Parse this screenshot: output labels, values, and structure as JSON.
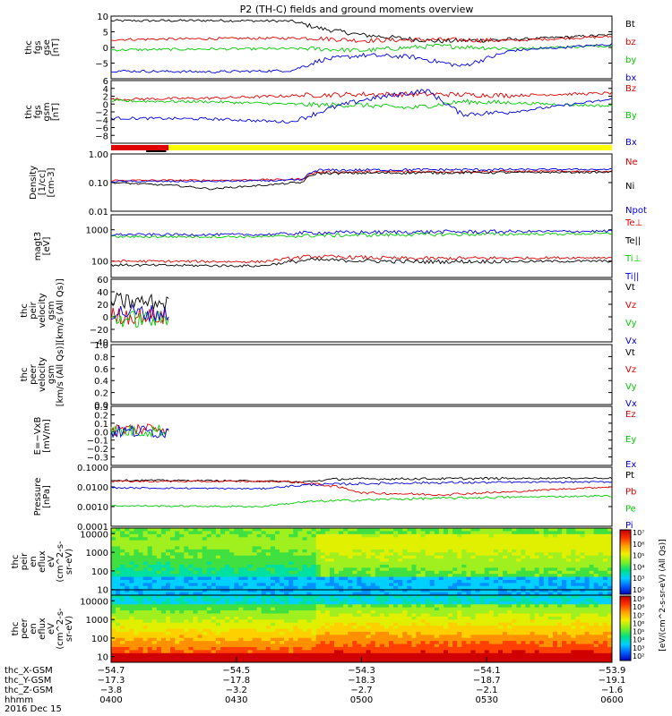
{
  "title": "P2 (TH-C) fields and ground moments overview",
  "date": "2016 Dec 15",
  "colors": {
    "black": "#000000",
    "red": "#e00000",
    "green": "#00cc00",
    "blue": "#0000e0",
    "yellow": "#ffff00",
    "gray": "#888888"
  },
  "chart_data": [
    {
      "id": "fgs_dsl",
      "type": "line",
      "ylabel_lines": [
        "thc",
        "fgs",
        "gse",
        "[nT]"
      ],
      "ylim": [
        -10,
        10
      ],
      "ticks": [
        "10",
        "5",
        "0",
        "−5"
      ],
      "tick_values": [
        10,
        5,
        0,
        -5
      ],
      "series": [
        {
          "name": "Bt",
          "color": "#000000",
          "keypoints": [
            [
              0,
              8.5
            ],
            [
              0.2,
              8.6
            ],
            [
              0.36,
              8.4
            ],
            [
              0.42,
              6
            ],
            [
              0.5,
              4
            ],
            [
              0.65,
              2
            ],
            [
              0.8,
              2.5
            ],
            [
              1,
              4
            ]
          ]
        },
        {
          "name": "bz",
          "color": "#e00000",
          "keypoints": [
            [
              0,
              2.5
            ],
            [
              0.2,
              2.8
            ],
            [
              0.4,
              3
            ],
            [
              0.5,
              2.2
            ],
            [
              0.65,
              2.5
            ],
            [
              0.8,
              2.2
            ],
            [
              1,
              3.5
            ]
          ]
        },
        {
          "name": "by",
          "color": "#00cc00",
          "keypoints": [
            [
              0,
              -0.8
            ],
            [
              0.2,
              -0.5
            ],
            [
              0.4,
              -0.4
            ],
            [
              0.5,
              -1
            ],
            [
              0.65,
              0.5
            ],
            [
              0.8,
              -0.4
            ],
            [
              1,
              0.6
            ]
          ]
        },
        {
          "name": "bx",
          "color": "#0000e0",
          "keypoints": [
            [
              0,
              -7.5
            ],
            [
              0.2,
              -7.8
            ],
            [
              0.36,
              -7.4
            ],
            [
              0.42,
              -4
            ],
            [
              0.5,
              -2.5
            ],
            [
              0.6,
              -3
            ],
            [
              0.7,
              -6
            ],
            [
              0.8,
              -1
            ],
            [
              1,
              1
            ]
          ]
        }
      ]
    },
    {
      "id": "fgs_gsm",
      "type": "line",
      "ylabel_lines": [
        "thc",
        "fgs",
        "gsm",
        "[nT]"
      ],
      "ylim": [
        -10,
        6
      ],
      "ticks": [
        "6",
        "4",
        "2",
        "0",
        "−2",
        "−4",
        "−6",
        "−8"
      ],
      "tick_values": [
        6,
        4,
        2,
        0,
        -2,
        -4,
        -6,
        -8
      ],
      "series": [
        {
          "name": "Bz",
          "color": "#e00000",
          "keypoints": [
            [
              0,
              1.2
            ],
            [
              0.2,
              1.5
            ],
            [
              0.38,
              2.2
            ],
            [
              0.5,
              2.5
            ],
            [
              0.65,
              2.5
            ],
            [
              0.8,
              2.2
            ],
            [
              1,
              2.8
            ]
          ]
        },
        {
          "name": "By",
          "color": "#00cc00",
          "keypoints": [
            [
              0,
              0.8
            ],
            [
              0.2,
              0.6
            ],
            [
              0.4,
              -0.2
            ],
            [
              0.5,
              -0.3
            ],
            [
              0.6,
              -1
            ],
            [
              0.7,
              0.6
            ],
            [
              0.8,
              0.3
            ],
            [
              1,
              -0.5
            ]
          ]
        },
        {
          "name": "Bx",
          "color": "#0000e0",
          "keypoints": [
            [
              0,
              -3.6
            ],
            [
              0.2,
              -3.8
            ],
            [
              0.36,
              -4.6
            ],
            [
              0.44,
              -1
            ],
            [
              0.5,
              1
            ],
            [
              0.63,
              3.5
            ],
            [
              0.7,
              -2.6
            ],
            [
              0.8,
              -2
            ],
            [
              1,
              1.2
            ]
          ]
        }
      ]
    },
    {
      "id": "mode_bar",
      "type": "bar",
      "segments": [
        {
          "from": 0,
          "to": 0.115,
          "color": "#e00000"
        },
        {
          "from": 0.115,
          "to": 1,
          "color": "#ffff00"
        }
      ]
    },
    {
      "id": "density",
      "type": "line",
      "log": true,
      "ylabel_lines": [
        "Density",
        "[1/cc]",
        "[cm-3]"
      ],
      "ylim": [
        0.01,
        1.0
      ],
      "ticks": [
        "1.00",
        "0.10",
        "0.01"
      ],
      "tick_values": [
        1.0,
        0.1,
        0.01
      ],
      "series": [
        {
          "name": "Ne",
          "color": "#e00000",
          "keypoints": [
            [
              0,
              0.12
            ],
            [
              0.2,
              0.12
            ],
            [
              0.38,
              0.13
            ],
            [
              0.41,
              0.23
            ],
            [
              0.6,
              0.24
            ],
            [
              1,
              0.25
            ]
          ]
        },
        {
          "name": "Ni",
          "color": "#000000",
          "keypoints": [
            [
              0,
              0.1
            ],
            [
              0.12,
              0.08
            ],
            [
              0.2,
              0.06
            ],
            [
              0.3,
              0.08
            ],
            [
              0.38,
              0.1
            ],
            [
              0.41,
              0.21
            ],
            [
              0.6,
              0.22
            ],
            [
              1,
              0.23
            ]
          ]
        },
        {
          "name": "Npot",
          "color": "#0000e0",
          "keypoints": [
            [
              0,
              0.11
            ],
            [
              0.2,
              0.11
            ],
            [
              0.38,
              0.12
            ],
            [
              0.41,
              0.27
            ],
            [
              0.6,
              0.28
            ],
            [
              1,
              0.29
            ]
          ]
        }
      ]
    },
    {
      "id": "temperature",
      "type": "line",
      "log": true,
      "ylabel_lines": [
        "magt3",
        "[eV]"
      ],
      "ylim": [
        30,
        3000
      ],
      "ticks": [
        "1000",
        "100"
      ],
      "tick_values": [
        1000,
        100
      ],
      "series": [
        {
          "name": "Te⊥",
          "color": "#e00000",
          "keypoints": [
            [
              0,
              100
            ],
            [
              0.3,
              95
            ],
            [
              0.4,
              140
            ],
            [
              0.6,
              120
            ],
            [
              1,
              130
            ]
          ]
        },
        {
          "name": "Te||",
          "color": "#000000",
          "keypoints": [
            [
              0,
              75
            ],
            [
              0.3,
              70
            ],
            [
              0.4,
              110
            ],
            [
              0.6,
              95
            ],
            [
              1,
              100
            ]
          ]
        },
        {
          "name": "Ti⊥",
          "color": "#00cc00",
          "keypoints": [
            [
              0,
              600
            ],
            [
              0.3,
              600
            ],
            [
              0.4,
              650
            ],
            [
              0.6,
              700
            ],
            [
              1,
              750
            ]
          ]
        },
        {
          "name": "Ti||",
          "color": "#0000e0",
          "keypoints": [
            [
              0,
              700
            ],
            [
              0.3,
              700
            ],
            [
              0.4,
              800
            ],
            [
              0.6,
              850
            ],
            [
              1,
              900
            ]
          ]
        }
      ]
    },
    {
      "id": "peir_velocity",
      "type": "line",
      "ylabel_lines": [
        "thc",
        "peir",
        "velocity",
        "gsm",
        "[km/s (All Qs)]"
      ],
      "ylim": [
        -40,
        60
      ],
      "ticks": [
        "60",
        "40",
        "20",
        "0",
        "−20",
        "−40"
      ],
      "tick_values": [
        60,
        40,
        20,
        0,
        -20,
        -40
      ],
      "xrange": [
        0,
        0.115
      ],
      "series": [
        {
          "name": "Vt",
          "color": "#000000",
          "keypoints": [
            [
              0,
              25
            ],
            [
              0.115,
              22
            ]
          ]
        },
        {
          "name": "Vz",
          "color": "#e00000",
          "keypoints": [
            [
              0,
              2
            ],
            [
              0.115,
              0
            ]
          ]
        },
        {
          "name": "Vy",
          "color": "#00cc00",
          "keypoints": [
            [
              0,
              -3
            ],
            [
              0.115,
              -5
            ]
          ]
        },
        {
          "name": "Vx",
          "color": "#0000e0",
          "keypoints": [
            [
              0,
              8
            ],
            [
              0.115,
              5
            ]
          ]
        }
      ]
    },
    {
      "id": "peer_velocity",
      "type": "line",
      "ylabel_lines": [
        "thc",
        "peer",
        "velocity",
        "gsm",
        "[km/s (All Qs)]"
      ],
      "ylim": [
        0,
        1.0
      ],
      "ticks": [
        "1.0",
        "0.8",
        "0.6",
        "0.4",
        "0.2",
        "0.0"
      ],
      "tick_values": [
        1.0,
        0.8,
        0.6,
        0.4,
        0.2,
        0.0
      ],
      "series": [
        {
          "name": "Vt",
          "color": "#000000",
          "keypoints": []
        },
        {
          "name": "Vz",
          "color": "#e00000",
          "keypoints": []
        },
        {
          "name": "Vy",
          "color": "#00cc00",
          "keypoints": []
        },
        {
          "name": "Vx",
          "color": "#0000e0",
          "keypoints": []
        }
      ]
    },
    {
      "id": "efield",
      "type": "line",
      "ylabel_lines": [
        "E=−VxB",
        "[mV/m]"
      ],
      "ylim": [
        -0.4,
        0.3
      ],
      "ticks": [
        "0.3",
        "0.2",
        "0.1",
        "0.0",
        "−0.1",
        "−0.2",
        "−0.3"
      ],
      "tick_values": [
        0.3,
        0.2,
        0.1,
        0.0,
        -0.1,
        -0.2,
        -0.3
      ],
      "xrange": [
        0,
        0.115
      ],
      "series": [
        {
          "name": "Ez",
          "color": "#e00000",
          "keypoints": [
            [
              0,
              0.02
            ],
            [
              0.115,
              0.05
            ]
          ]
        },
        {
          "name": "Ey",
          "color": "#00cc00",
          "keypoints": [
            [
              0,
              0.0
            ],
            [
              0.115,
              0.02
            ]
          ]
        },
        {
          "name": "Ex",
          "color": "#0000e0",
          "keypoints": [
            [
              0,
              0.0
            ],
            [
              0.115,
              0.0
            ]
          ]
        }
      ]
    },
    {
      "id": "pressure",
      "type": "line",
      "log": true,
      "ylabel_lines": [
        "Pressure",
        "[nPa]"
      ],
      "ylim": [
        0.0001,
        0.1
      ],
      "ticks": [
        "0.1000",
        "0.0100",
        "0.0010",
        "0.0001"
      ],
      "tick_values": [
        0.1,
        0.01,
        0.001,
        0.0001
      ],
      "series": [
        {
          "name": "Pt",
          "color": "#000000",
          "keypoints": [
            [
              0,
              0.022
            ],
            [
              0.3,
              0.02
            ],
            [
              0.38,
              0.017
            ],
            [
              0.45,
              0.025
            ],
            [
              1,
              0.028
            ]
          ]
        },
        {
          "name": "Pb",
          "color": "#e00000",
          "keypoints": [
            [
              0,
              0.019
            ],
            [
              0.35,
              0.019
            ],
            [
              0.42,
              0.013
            ],
            [
              0.5,
              0.005
            ],
            [
              0.65,
              0.004
            ],
            [
              0.8,
              0.0055
            ],
            [
              1,
              0.01
            ]
          ]
        },
        {
          "name": "Pe",
          "color": "#00cc00",
          "keypoints": [
            [
              0,
              0.0011
            ],
            [
              0.3,
              0.001
            ],
            [
              0.4,
              0.0018
            ],
            [
              0.6,
              0.0025
            ],
            [
              1,
              0.0035
            ]
          ]
        },
        {
          "name": "Pi",
          "color": "#0000e0",
          "keypoints": [
            [
              0,
              0.009
            ],
            [
              0.3,
              0.008
            ],
            [
              0.4,
              0.013
            ],
            [
              0.6,
              0.016
            ],
            [
              1,
              0.018
            ]
          ]
        }
      ]
    },
    {
      "id": "peir_spec",
      "type": "heatmap",
      "ylabel_lines": [
        "thc",
        "peir",
        "en",
        "eflux",
        "eV",
        "(cm^2-s-",
        "sr-eV)"
      ],
      "ylim": [
        5,
        20000
      ],
      "ticks": [
        "10000",
        "1000",
        "100",
        "10"
      ],
      "tick_values": [
        10000,
        1000,
        100,
        10
      ]
    },
    {
      "id": "peer_spec",
      "type": "heatmap",
      "ylabel_lines": [
        "thc",
        "peer",
        "en",
        "eflux",
        "eV",
        "(cm^2-s-",
        "sr-eV)"
      ],
      "ylim": [
        5,
        20000
      ],
      "ticks": [
        "10000",
        "1000",
        "100",
        "10"
      ],
      "tick_values": [
        10000,
        1000,
        100,
        10
      ]
    }
  ],
  "colorbar": {
    "upper_labels": [
      "10⁷",
      "10⁶",
      "10⁵",
      "10⁴",
      "10³",
      "10²"
    ],
    "lower_labels": [
      "10⁹",
      "10⁸",
      "10⁷",
      "10⁶",
      "10⁵",
      "10⁴",
      "10³",
      "10²"
    ],
    "label": "[eV/(cm^2-s-sr-eV) (All Qs)]"
  },
  "xaxis": {
    "rows": [
      {
        "label": "thc_X-GSM",
        "values": [
          "−54.7",
          "−54.5",
          "−54.3",
          "−54.1",
          "−53.9"
        ]
      },
      {
        "label": "thc_Y-GSM",
        "values": [
          "−17.3",
          "−17.8",
          "−18.3",
          "−18.7",
          "−19.1"
        ]
      },
      {
        "label": "thc_Z-GSM",
        "values": [
          "−3.8",
          "−3.2",
          "−2.7",
          "−2.1",
          "−1.6"
        ]
      },
      {
        "label": "hhmm",
        "values": [
          "0400",
          "0430",
          "0500",
          "0530",
          "0600"
        ]
      }
    ]
  }
}
